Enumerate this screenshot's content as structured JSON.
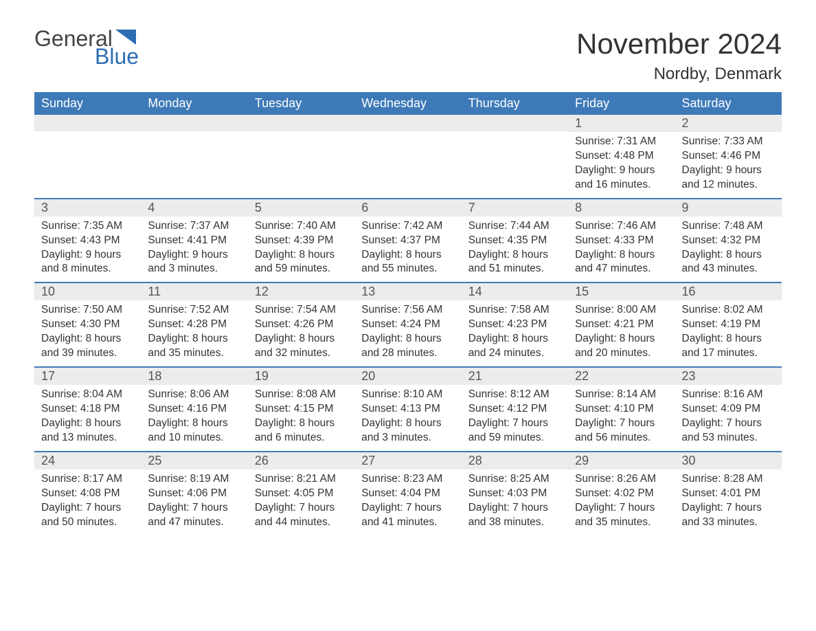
{
  "brand": {
    "general": "General",
    "blue": "Blue"
  },
  "title": "November 2024",
  "location": "Nordby, Denmark",
  "colors": {
    "header_bg": "#3e7ab8",
    "header_text": "#ffffff",
    "daynum_bg": "#ececec",
    "text": "#333333",
    "brand_blue": "#2b6cb3",
    "border": "#3e7ab8",
    "page_bg": "#ffffff"
  },
  "weekdays": [
    "Sunday",
    "Monday",
    "Tuesday",
    "Wednesday",
    "Thursday",
    "Friday",
    "Saturday"
  ],
  "weeks": [
    [
      {
        "day": null
      },
      {
        "day": null
      },
      {
        "day": null
      },
      {
        "day": null
      },
      {
        "day": null
      },
      {
        "day": "1",
        "sunrise": "Sunrise: 7:31 AM",
        "sunset": "Sunset: 4:48 PM",
        "daylight1": "Daylight: 9 hours",
        "daylight2": "and 16 minutes."
      },
      {
        "day": "2",
        "sunrise": "Sunrise: 7:33 AM",
        "sunset": "Sunset: 4:46 PM",
        "daylight1": "Daylight: 9 hours",
        "daylight2": "and 12 minutes."
      }
    ],
    [
      {
        "day": "3",
        "sunrise": "Sunrise: 7:35 AM",
        "sunset": "Sunset: 4:43 PM",
        "daylight1": "Daylight: 9 hours",
        "daylight2": "and 8 minutes."
      },
      {
        "day": "4",
        "sunrise": "Sunrise: 7:37 AM",
        "sunset": "Sunset: 4:41 PM",
        "daylight1": "Daylight: 9 hours",
        "daylight2": "and 3 minutes."
      },
      {
        "day": "5",
        "sunrise": "Sunrise: 7:40 AM",
        "sunset": "Sunset: 4:39 PM",
        "daylight1": "Daylight: 8 hours",
        "daylight2": "and 59 minutes."
      },
      {
        "day": "6",
        "sunrise": "Sunrise: 7:42 AM",
        "sunset": "Sunset: 4:37 PM",
        "daylight1": "Daylight: 8 hours",
        "daylight2": "and 55 minutes."
      },
      {
        "day": "7",
        "sunrise": "Sunrise: 7:44 AM",
        "sunset": "Sunset: 4:35 PM",
        "daylight1": "Daylight: 8 hours",
        "daylight2": "and 51 minutes."
      },
      {
        "day": "8",
        "sunrise": "Sunrise: 7:46 AM",
        "sunset": "Sunset: 4:33 PM",
        "daylight1": "Daylight: 8 hours",
        "daylight2": "and 47 minutes."
      },
      {
        "day": "9",
        "sunrise": "Sunrise: 7:48 AM",
        "sunset": "Sunset: 4:32 PM",
        "daylight1": "Daylight: 8 hours",
        "daylight2": "and 43 minutes."
      }
    ],
    [
      {
        "day": "10",
        "sunrise": "Sunrise: 7:50 AM",
        "sunset": "Sunset: 4:30 PM",
        "daylight1": "Daylight: 8 hours",
        "daylight2": "and 39 minutes."
      },
      {
        "day": "11",
        "sunrise": "Sunrise: 7:52 AM",
        "sunset": "Sunset: 4:28 PM",
        "daylight1": "Daylight: 8 hours",
        "daylight2": "and 35 minutes."
      },
      {
        "day": "12",
        "sunrise": "Sunrise: 7:54 AM",
        "sunset": "Sunset: 4:26 PM",
        "daylight1": "Daylight: 8 hours",
        "daylight2": "and 32 minutes."
      },
      {
        "day": "13",
        "sunrise": "Sunrise: 7:56 AM",
        "sunset": "Sunset: 4:24 PM",
        "daylight1": "Daylight: 8 hours",
        "daylight2": "and 28 minutes."
      },
      {
        "day": "14",
        "sunrise": "Sunrise: 7:58 AM",
        "sunset": "Sunset: 4:23 PM",
        "daylight1": "Daylight: 8 hours",
        "daylight2": "and 24 minutes."
      },
      {
        "day": "15",
        "sunrise": "Sunrise: 8:00 AM",
        "sunset": "Sunset: 4:21 PM",
        "daylight1": "Daylight: 8 hours",
        "daylight2": "and 20 minutes."
      },
      {
        "day": "16",
        "sunrise": "Sunrise: 8:02 AM",
        "sunset": "Sunset: 4:19 PM",
        "daylight1": "Daylight: 8 hours",
        "daylight2": "and 17 minutes."
      }
    ],
    [
      {
        "day": "17",
        "sunrise": "Sunrise: 8:04 AM",
        "sunset": "Sunset: 4:18 PM",
        "daylight1": "Daylight: 8 hours",
        "daylight2": "and 13 minutes."
      },
      {
        "day": "18",
        "sunrise": "Sunrise: 8:06 AM",
        "sunset": "Sunset: 4:16 PM",
        "daylight1": "Daylight: 8 hours",
        "daylight2": "and 10 minutes."
      },
      {
        "day": "19",
        "sunrise": "Sunrise: 8:08 AM",
        "sunset": "Sunset: 4:15 PM",
        "daylight1": "Daylight: 8 hours",
        "daylight2": "and 6 minutes."
      },
      {
        "day": "20",
        "sunrise": "Sunrise: 8:10 AM",
        "sunset": "Sunset: 4:13 PM",
        "daylight1": "Daylight: 8 hours",
        "daylight2": "and 3 minutes."
      },
      {
        "day": "21",
        "sunrise": "Sunrise: 8:12 AM",
        "sunset": "Sunset: 4:12 PM",
        "daylight1": "Daylight: 7 hours",
        "daylight2": "and 59 minutes."
      },
      {
        "day": "22",
        "sunrise": "Sunrise: 8:14 AM",
        "sunset": "Sunset: 4:10 PM",
        "daylight1": "Daylight: 7 hours",
        "daylight2": "and 56 minutes."
      },
      {
        "day": "23",
        "sunrise": "Sunrise: 8:16 AM",
        "sunset": "Sunset: 4:09 PM",
        "daylight1": "Daylight: 7 hours",
        "daylight2": "and 53 minutes."
      }
    ],
    [
      {
        "day": "24",
        "sunrise": "Sunrise: 8:17 AM",
        "sunset": "Sunset: 4:08 PM",
        "daylight1": "Daylight: 7 hours",
        "daylight2": "and 50 minutes."
      },
      {
        "day": "25",
        "sunrise": "Sunrise: 8:19 AM",
        "sunset": "Sunset: 4:06 PM",
        "daylight1": "Daylight: 7 hours",
        "daylight2": "and 47 minutes."
      },
      {
        "day": "26",
        "sunrise": "Sunrise: 8:21 AM",
        "sunset": "Sunset: 4:05 PM",
        "daylight1": "Daylight: 7 hours",
        "daylight2": "and 44 minutes."
      },
      {
        "day": "27",
        "sunrise": "Sunrise: 8:23 AM",
        "sunset": "Sunset: 4:04 PM",
        "daylight1": "Daylight: 7 hours",
        "daylight2": "and 41 minutes."
      },
      {
        "day": "28",
        "sunrise": "Sunrise: 8:25 AM",
        "sunset": "Sunset: 4:03 PM",
        "daylight1": "Daylight: 7 hours",
        "daylight2": "and 38 minutes."
      },
      {
        "day": "29",
        "sunrise": "Sunrise: 8:26 AM",
        "sunset": "Sunset: 4:02 PM",
        "daylight1": "Daylight: 7 hours",
        "daylight2": "and 35 minutes."
      },
      {
        "day": "30",
        "sunrise": "Sunrise: 8:28 AM",
        "sunset": "Sunset: 4:01 PM",
        "daylight1": "Daylight: 7 hours",
        "daylight2": "and 33 minutes."
      }
    ]
  ]
}
